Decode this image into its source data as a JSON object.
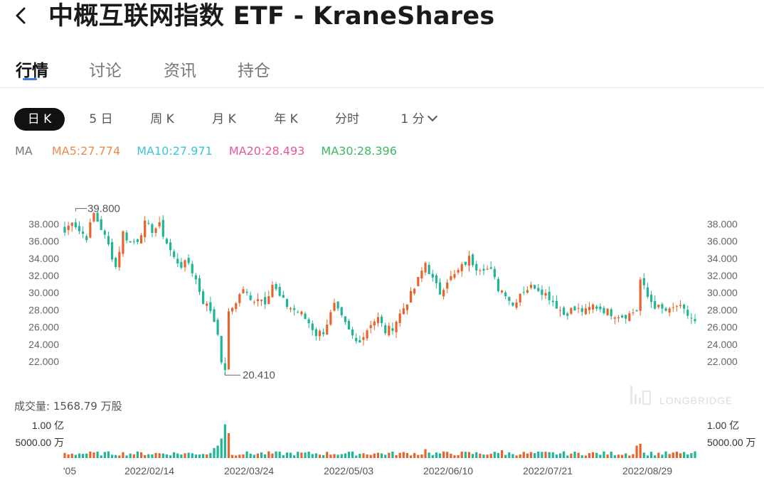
{
  "header": {
    "back_icon": "chevron-left-icon",
    "title": "中概互联网指数 ETF - KraneShares"
  },
  "tabs": [
    {
      "label": "行情",
      "active": true
    },
    {
      "label": "讨论",
      "active": false
    },
    {
      "label": "资讯",
      "active": false
    },
    {
      "label": "持仓",
      "active": false
    }
  ],
  "periods": [
    {
      "label": "日 K",
      "active": true
    },
    {
      "label": "5 日",
      "active": false
    },
    {
      "label": "周 K",
      "active": false
    },
    {
      "label": "月 K",
      "active": false
    },
    {
      "label": "年 K",
      "active": false
    },
    {
      "label": "分时",
      "active": false
    },
    {
      "label": "1 分",
      "active": false,
      "dropdown": true
    }
  ],
  "ma": {
    "label": "MA",
    "items": [
      {
        "text": "MA5:27.774",
        "color": "#f0894e"
      },
      {
        "text": "MA10:27.971",
        "color": "#3bc4d6"
      },
      {
        "text": "MA20:28.493",
        "color": "#e8569a"
      },
      {
        "text": "MA30:28.396",
        "color": "#3cb860"
      }
    ]
  },
  "volume": {
    "label": "成交量: 1568.79 万股",
    "tick_labels": [
      "1.00 亿",
      "5000.00 万"
    ]
  },
  "colors": {
    "up": "#e8632b",
    "down": "#1fb597"
  },
  "watermark": "LONGBRIDGE",
  "chart_data": {
    "type": "candlestick",
    "y_ticks": [
      "38.000",
      "36.000",
      "34.000",
      "32.000",
      "30.000",
      "28.000",
      "26.000",
      "24.000",
      "22.000"
    ],
    "ylim": [
      21.5,
      39.5
    ],
    "x_labels": [
      "'05",
      "2022/02/14",
      "2022/03/24",
      "2022/05/03",
      "2022/06/10",
      "2022/07/21",
      "2022/08/29"
    ],
    "max_label": "39.800",
    "min_label": "20.410",
    "max_value": 39.8,
    "min_value": 20.41,
    "anchors": [
      [
        0,
        37.0
      ],
      [
        2,
        38.5
      ],
      [
        4,
        37.2
      ],
      [
        6,
        36.5
      ],
      [
        8,
        39.2
      ],
      [
        10,
        37.5
      ],
      [
        12,
        35.5
      ],
      [
        14,
        33.0
      ],
      [
        16,
        37.0
      ],
      [
        18,
        35.8
      ],
      [
        20,
        36.2
      ],
      [
        22,
        38.0
      ],
      [
        24,
        37.3
      ],
      [
        26,
        37.8
      ],
      [
        28,
        35.8
      ],
      [
        30,
        34.0
      ],
      [
        32,
        33.2
      ],
      [
        34,
        33.5
      ],
      [
        36,
        31.5
      ],
      [
        38,
        29.0
      ],
      [
        40,
        28.0
      ],
      [
        42,
        25.5
      ],
      [
        43,
        21.5
      ],
      [
        44,
        22.0
      ],
      [
        45,
        27.5
      ],
      [
        47,
        29.0
      ],
      [
        49,
        30.5
      ],
      [
        51,
        29.0
      ],
      [
        53,
        29.5
      ],
      [
        55,
        29.0
      ],
      [
        57,
        31.0
      ],
      [
        59,
        29.5
      ],
      [
        61,
        28.5
      ],
      [
        63,
        28.0
      ],
      [
        65,
        27.5
      ],
      [
        67,
        26.5
      ],
      [
        69,
        25.2
      ],
      [
        71,
        25.5
      ],
      [
        73,
        27.5
      ],
      [
        74,
        28.5
      ],
      [
        76,
        27.0
      ],
      [
        78,
        25.5
      ],
      [
        80,
        24.3
      ],
      [
        82,
        25.0
      ],
      [
        84,
        26.5
      ],
      [
        86,
        27.0
      ],
      [
        88,
        25.5
      ],
      [
        90,
        26.0
      ],
      [
        92,
        27.5
      ],
      [
        94,
        29.0
      ],
      [
        96,
        30.5
      ],
      [
        98,
        32.5
      ],
      [
        99,
        33.5
      ],
      [
        101,
        31.5
      ],
      [
        103,
        30.0
      ],
      [
        105,
        31.5
      ],
      [
        107,
        32.0
      ],
      [
        109,
        33.0
      ],
      [
        111,
        34.0
      ],
      [
        113,
        33.0
      ],
      [
        115,
        33.0
      ],
      [
        117,
        32.5
      ],
      [
        119,
        30.5
      ],
      [
        121,
        30.0
      ],
      [
        123,
        28.5
      ],
      [
        125,
        30.0
      ],
      [
        127,
        30.5
      ],
      [
        129,
        30.8
      ],
      [
        131,
        30.2
      ],
      [
        133,
        29.5
      ],
      [
        135,
        28.5
      ],
      [
        137,
        27.5
      ],
      [
        139,
        28.0
      ],
      [
        141,
        28.0
      ],
      [
        143,
        27.8
      ],
      [
        145,
        28.5
      ],
      [
        147,
        28.2
      ],
      [
        149,
        27.8
      ],
      [
        151,
        27.5
      ],
      [
        153,
        27.3
      ],
      [
        155,
        27.5
      ],
      [
        157,
        28.0
      ],
      [
        158,
        31.5
      ],
      [
        160,
        29.5
      ],
      [
        162,
        28.5
      ],
      [
        164,
        28.0
      ],
      [
        166,
        27.8
      ],
      [
        168,
        28.5
      ],
      [
        170,
        27.8
      ],
      [
        172,
        27.0
      ],
      [
        173,
        26.5
      ]
    ],
    "volume_spikes": {
      "43": 0.55,
      "44": 0.95,
      "45": 0.7,
      "42": 0.35,
      "41": 0.28,
      "157": 0.35,
      "158": 0.4,
      "120": 0.22,
      "99": 0.25
    }
  }
}
